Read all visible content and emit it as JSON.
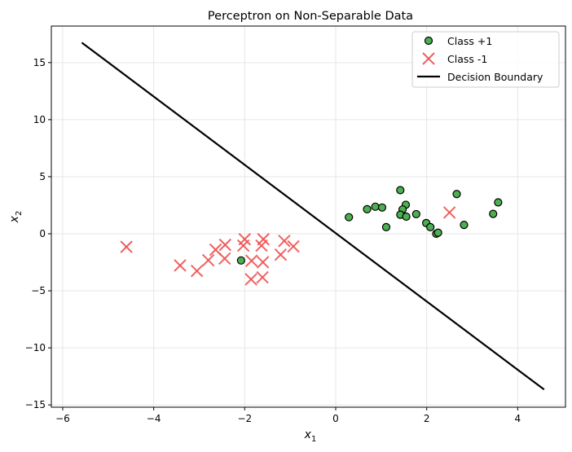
{
  "chart_data": {
    "type": "scatter",
    "title": "Perceptron on Non-Separable Data",
    "xlabel": "x",
    "xlabel_sub": "1",
    "ylabel": "x",
    "ylabel_sub": "2",
    "xlim": [
      -6.25,
      5.05
    ],
    "ylim": [
      -15.2,
      18.2
    ],
    "xticks": [
      -6,
      -4,
      -2,
      0,
      2,
      4
    ],
    "yticks": [
      -15,
      -10,
      -5,
      0,
      5,
      10,
      15
    ],
    "xtick_labels": [
      "−6",
      "−4",
      "−2",
      "0",
      "2",
      "4"
    ],
    "ytick_labels": [
      "−15",
      "−10",
      "−5",
      "0",
      "5",
      "10",
      "15"
    ],
    "grid": true,
    "legend_position": "top-right",
    "series": [
      {
        "name": "Class +1",
        "marker": "circle",
        "color": "#4caf50",
        "points": [
          [
            -2.08,
            -2.34
          ],
          [
            0.29,
            1.45
          ],
          [
            0.69,
            2.15
          ],
          [
            0.87,
            2.37
          ],
          [
            1.02,
            2.3
          ],
          [
            1.42,
            3.82
          ],
          [
            1.54,
            2.54
          ],
          [
            1.47,
            2.13
          ],
          [
            1.42,
            1.67
          ],
          [
            1.55,
            1.5
          ],
          [
            1.11,
            0.58
          ],
          [
            1.77,
            1.72
          ],
          [
            1.99,
            0.94
          ],
          [
            2.08,
            0.58
          ],
          [
            2.21,
            0.0
          ],
          [
            2.25,
            0.09
          ],
          [
            2.66,
            3.48
          ],
          [
            2.82,
            0.78
          ],
          [
            3.46,
            1.74
          ],
          [
            3.57,
            2.75
          ]
        ]
      },
      {
        "name": "Class -1",
        "marker": "x",
        "color": "#f05050",
        "points": [
          [
            -4.6,
            -1.15
          ],
          [
            -3.42,
            -2.78
          ],
          [
            -3.05,
            -3.26
          ],
          [
            -2.8,
            -2.32
          ],
          [
            -2.64,
            -1.4
          ],
          [
            -2.43,
            -0.97
          ],
          [
            -2.44,
            -2.17
          ],
          [
            -2.0,
            -0.48
          ],
          [
            -2.03,
            -1.04
          ],
          [
            -1.85,
            -2.37
          ],
          [
            -1.86,
            -3.99
          ],
          [
            -1.59,
            -0.48
          ],
          [
            -1.63,
            -1.04
          ],
          [
            -1.6,
            -2.49
          ],
          [
            -1.61,
            -3.82
          ],
          [
            -1.13,
            -0.63
          ],
          [
            -0.93,
            -1.11
          ],
          [
            -1.21,
            -1.83
          ],
          [
            2.5,
            1.86
          ]
        ]
      },
      {
        "name": "Decision Boundary",
        "marker": "line",
        "color": "#000000",
        "points": [
          [
            -5.58,
            16.75
          ],
          [
            4.58,
            -13.65
          ]
        ]
      }
    ]
  }
}
